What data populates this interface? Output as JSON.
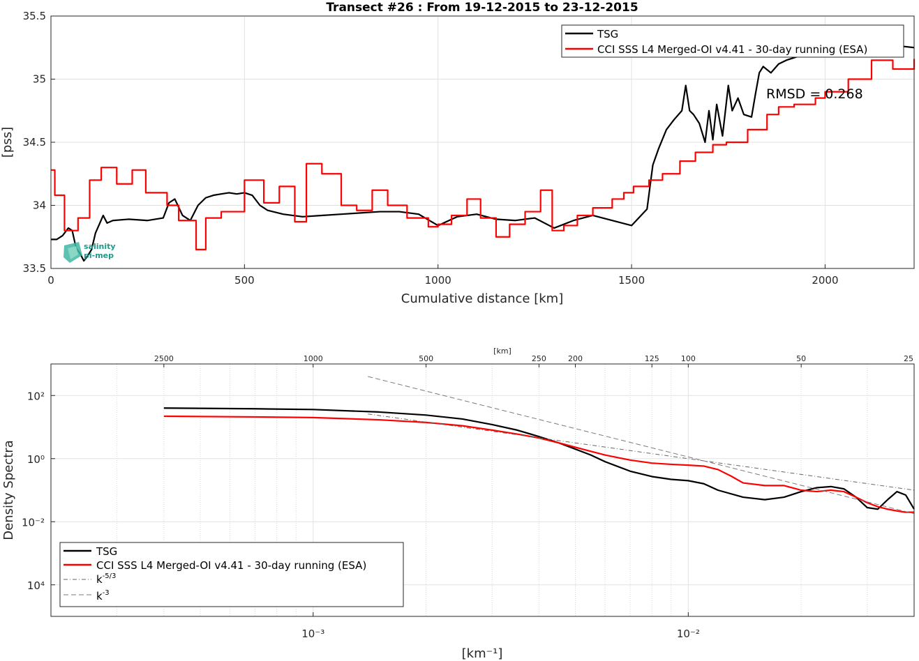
{
  "chart_data": [
    {
      "type": "line",
      "title": "Transect #26 : From 19-12-2015 to 23-12-2015",
      "xlabel": "Cumulative distance [km]",
      "ylabel": "[pss]",
      "xlim": [
        0,
        2230
      ],
      "ylim": [
        33.5,
        35.5
      ],
      "xticks": [
        0,
        500,
        1000,
        1500,
        2000
      ],
      "yticks": [
        33.5,
        34,
        34.5,
        35,
        35.5
      ],
      "grid": true,
      "legend_position": "top-right",
      "annotation": "RMSD = 0.268",
      "logo_text": [
        "salinity",
        "pi-mep"
      ],
      "series": [
        {
          "name": "TSG",
          "color": "#000000",
          "step": false,
          "x": [
            0,
            15,
            30,
            45,
            55,
            65,
            75,
            85,
            95,
            105,
            115,
            125,
            135,
            145,
            160,
            200,
            250,
            290,
            305,
            320,
            340,
            360,
            380,
            400,
            420,
            440,
            460,
            480,
            500,
            520,
            540,
            560,
            600,
            650,
            700,
            750,
            800,
            850,
            900,
            950,
            1000,
            1050,
            1100,
            1150,
            1200,
            1250,
            1300,
            1350,
            1400,
            1450,
            1500,
            1540,
            1555,
            1570,
            1590,
            1610,
            1630,
            1640,
            1650,
            1660,
            1675,
            1690,
            1700,
            1710,
            1720,
            1735,
            1750,
            1760,
            1775,
            1790,
            1810,
            1820,
            1830,
            1840,
            1860,
            1880,
            1900,
            1950,
            2000,
            2050,
            2100,
            2150,
            2200,
            2230
          ],
          "y": [
            33.73,
            33.73,
            33.76,
            33.82,
            33.8,
            33.66,
            33.62,
            33.56,
            33.6,
            33.65,
            33.78,
            33.85,
            33.92,
            33.86,
            33.88,
            33.89,
            33.88,
            33.9,
            34.02,
            34.05,
            33.92,
            33.88,
            34.0,
            34.06,
            34.08,
            34.09,
            34.1,
            34.09,
            34.1,
            34.08,
            34.0,
            33.96,
            33.93,
            33.91,
            33.92,
            33.93,
            33.94,
            33.95,
            33.95,
            33.93,
            33.84,
            33.91,
            33.93,
            33.89,
            33.88,
            33.9,
            33.82,
            33.88,
            33.92,
            33.88,
            33.84,
            33.97,
            34.32,
            34.45,
            34.6,
            34.68,
            34.75,
            34.95,
            34.75,
            34.72,
            34.65,
            34.5,
            34.75,
            34.52,
            34.8,
            34.55,
            34.95,
            34.75,
            34.85,
            34.72,
            34.7,
            34.88,
            35.05,
            35.1,
            35.05,
            35.12,
            35.15,
            35.2,
            35.18,
            35.2,
            35.22,
            35.24,
            35.26,
            35.25
          ]
        },
        {
          "name": "CCI SSS L4 Merged-OI v4.41 - 30-day running (ESA)",
          "color": "#ff0000",
          "step": true,
          "x": [
            0,
            10,
            35,
            70,
            100,
            130,
            170,
            210,
            245,
            300,
            330,
            375,
            400,
            440,
            500,
            550,
            590,
            630,
            660,
            700,
            750,
            790,
            830,
            870,
            920,
            975,
            1000,
            1035,
            1075,
            1110,
            1150,
            1185,
            1225,
            1265,
            1295,
            1325,
            1360,
            1400,
            1450,
            1480,
            1505,
            1545,
            1580,
            1625,
            1665,
            1710,
            1745,
            1800,
            1850,
            1880,
            1920,
            1975,
            2000,
            2060,
            2120,
            2175,
            2230
          ],
          "y": [
            34.28,
            34.08,
            33.8,
            33.9,
            34.2,
            34.3,
            34.17,
            34.28,
            34.1,
            34.0,
            33.88,
            33.65,
            33.9,
            33.95,
            34.2,
            34.02,
            34.15,
            33.87,
            34.33,
            34.25,
            34.0,
            33.96,
            34.12,
            34.0,
            33.9,
            33.83,
            33.85,
            33.92,
            34.05,
            33.9,
            33.75,
            33.85,
            33.95,
            34.12,
            33.8,
            33.84,
            33.92,
            33.98,
            34.05,
            34.1,
            34.15,
            34.2,
            34.25,
            34.35,
            34.42,
            34.48,
            34.5,
            34.6,
            34.72,
            34.78,
            34.8,
            34.85,
            34.9,
            35.0,
            35.15,
            35.08,
            35.16
          ]
        }
      ]
    },
    {
      "type": "line",
      "xscale": "log",
      "yscale": "log",
      "xlabel": "[km⁻¹]",
      "ylabel": "Density Spectra",
      "top_axis_label": "[km]",
      "xlim": [
        0.0002,
        0.04
      ],
      "ylim": [
        1e-05,
        1000
      ],
      "xticks": [
        "10⁻³",
        "10⁻²"
      ],
      "yticks": [
        "10⁴",
        "10⁻²",
        "10⁰",
        "10²"
      ],
      "top_ticks": [
        2500,
        1000,
        500,
        250,
        200,
        125,
        100,
        50,
        25
      ],
      "grid": true,
      "legend_position": "bottom-left",
      "series": [
        {
          "name": "TSG",
          "color": "#000000",
          "dash": "solid",
          "x": [
            0.0004,
            0.0007,
            0.001,
            0.0015,
            0.002,
            0.0025,
            0.003,
            0.0035,
            0.004,
            0.0045,
            0.005,
            0.0055,
            0.006,
            0.007,
            0.008,
            0.009,
            0.01,
            0.011,
            0.012,
            0.014,
            0.016,
            0.018,
            0.02,
            0.022,
            0.024,
            0.026,
            0.028,
            0.03,
            0.032,
            0.034,
            0.036,
            0.038,
            0.04
          ],
          "y": [
            40,
            38,
            36,
            30,
            24,
            18,
            12,
            8,
            5,
            3.2,
            2.0,
            1.3,
            0.8,
            0.4,
            0.27,
            0.22,
            0.2,
            0.16,
            0.1,
            0.06,
            0.05,
            0.06,
            0.09,
            0.12,
            0.13,
            0.11,
            0.06,
            0.028,
            0.025,
            0.05,
            0.09,
            0.07,
            0.025
          ]
        },
        {
          "name": "CCI SSS L4 Merged-OI v4.41 - 30-day running (ESA)",
          "color": "#ff0000",
          "dash": "solid",
          "x": [
            0.0004,
            0.0007,
            0.001,
            0.0015,
            0.002,
            0.0025,
            0.003,
            0.0035,
            0.004,
            0.0045,
            0.005,
            0.0055,
            0.006,
            0.007,
            0.008,
            0.009,
            0.01,
            0.011,
            0.012,
            0.013,
            0.014,
            0.016,
            0.018,
            0.02,
            0.022,
            0.024,
            0.026,
            0.028,
            0.03,
            0.032,
            0.034,
            0.036,
            0.038,
            0.04
          ],
          "y": [
            22,
            21,
            20,
            17,
            14,
            11,
            8,
            6,
            4.5,
            3.2,
            2.3,
            1.7,
            1.3,
            0.9,
            0.72,
            0.66,
            0.62,
            0.58,
            0.45,
            0.28,
            0.17,
            0.14,
            0.14,
            0.1,
            0.09,
            0.1,
            0.09,
            0.06,
            0.04,
            0.03,
            0.025,
            0.022,
            0.02,
            0.02
          ]
        },
        {
          "name": "k⁻⁵ᐟ³",
          "color": "#666666",
          "dash": "dashdot",
          "x": [
            0.0014,
            0.04
          ],
          "y": [
            26,
            0.1
          ]
        },
        {
          "name": "k⁻³",
          "color": "#7a7a7a",
          "dash": "dashed",
          "x": [
            0.0014,
            0.04
          ],
          "y": [
            400,
            0.018
          ]
        }
      ],
      "legend_entries": [
        "TSG",
        "CCI SSS L4 Merged-OI v4.41 - 30-day running (ESA)",
        "k",
        "k"
      ],
      "legend_superscripts": [
        "-5/3",
        "-3"
      ]
    }
  ]
}
